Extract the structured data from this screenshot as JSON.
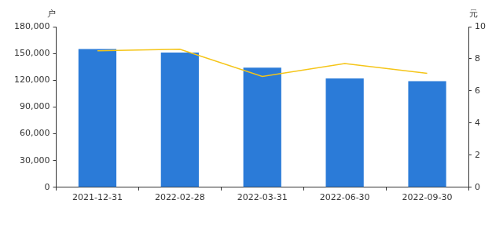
{
  "chart_data": {
    "type": "bar",
    "y_label": "户",
    "y2_label": "元",
    "categories": [
      "2021-12-31",
      "2022-02-28",
      "2022-03-31",
      "2022-06-30",
      "2022-09-30"
    ],
    "series": [
      {
        "type": "bar",
        "color": "#2b7bd8",
        "values": [
          155000,
          151000,
          134000,
          122000,
          119000
        ]
      },
      {
        "type": "line",
        "axis": "y2",
        "color": "#f5c518",
        "marker": "none",
        "values": [
          8.5,
          8.6,
          6.9,
          7.7,
          7.1
        ]
      }
    ],
    "ylim": [
      0,
      180000
    ],
    "yticks": [
      0,
      {
        "value": 30000,
        "label": "30,000"
      },
      {
        "value": 60000,
        "label": "60,000"
      },
      {
        "value": 90000,
        "label": "90,000"
      },
      {
        "value": 120000,
        "label": "120,000"
      },
      {
        "value": 150000,
        "label": "150,000"
      },
      {
        "value": 180000,
        "label": "180,000"
      }
    ],
    "y2lim": [
      0,
      10
    ],
    "y2ticks": [
      0,
      2,
      4,
      6,
      8,
      10
    ],
    "grid": false
  }
}
